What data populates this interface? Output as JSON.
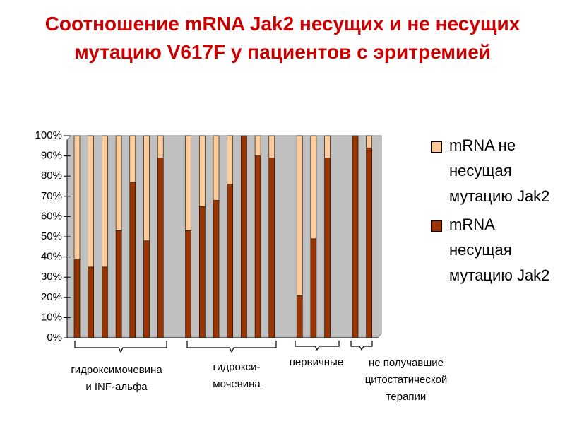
{
  "chart_data": {
    "type": "bar",
    "stacked": true,
    "percent": true,
    "title": "Соотношение mRNA Jak2 несущих и не несущих мутацию V617F у пациентов с эритремией",
    "categories": [
      null,
      null,
      null,
      null,
      null,
      null,
      null,
      null,
      null,
      null,
      null,
      null,
      null,
      null,
      null,
      null,
      null,
      null,
      null,
      null,
      null,
      null
    ],
    "series": [
      {
        "name": "mRNA несущая мутацию Jak2",
        "color": "#993300",
        "values": [
          39,
          35,
          35,
          53,
          77,
          48,
          89,
          null,
          53,
          65,
          68,
          76,
          100,
          90,
          89,
          null,
          21,
          49,
          89,
          null,
          100,
          94
        ]
      },
      {
        "name": "mRNA не несущая мутацию Jak2",
        "color": "#ffcc99",
        "values": [
          61,
          65,
          65,
          47,
          23,
          52,
          11,
          null,
          47,
          35,
          32,
          24,
          0,
          10,
          11,
          null,
          79,
          51,
          11,
          null,
          0,
          6
        ]
      }
    ],
    "ylim": [
      0,
      100
    ],
    "yticks": [
      {
        "value": 0,
        "label": "0%"
      },
      {
        "value": 10,
        "label": "10%"
      },
      {
        "value": 20,
        "label": "20%"
      },
      {
        "value": 30,
        "label": "30%"
      },
      {
        "value": 40,
        "label": "40%"
      },
      {
        "value": 50,
        "label": "50%"
      },
      {
        "value": 60,
        "label": "60%"
      },
      {
        "value": 70,
        "label": "70%"
      },
      {
        "value": 80,
        "label": "80%"
      },
      {
        "value": 90,
        "label": "90%"
      },
      {
        "value": 100,
        "label": "100%"
      }
    ],
    "group_labels": [
      [
        "гидроксимочевина",
        "и INF-альфа"
      ],
      [
        "гидрокси-",
        "мочевина"
      ],
      [
        "первичные"
      ],
      [
        "не получавшие",
        "цитостатической",
        "терапии"
      ]
    ],
    "legend": "right"
  }
}
